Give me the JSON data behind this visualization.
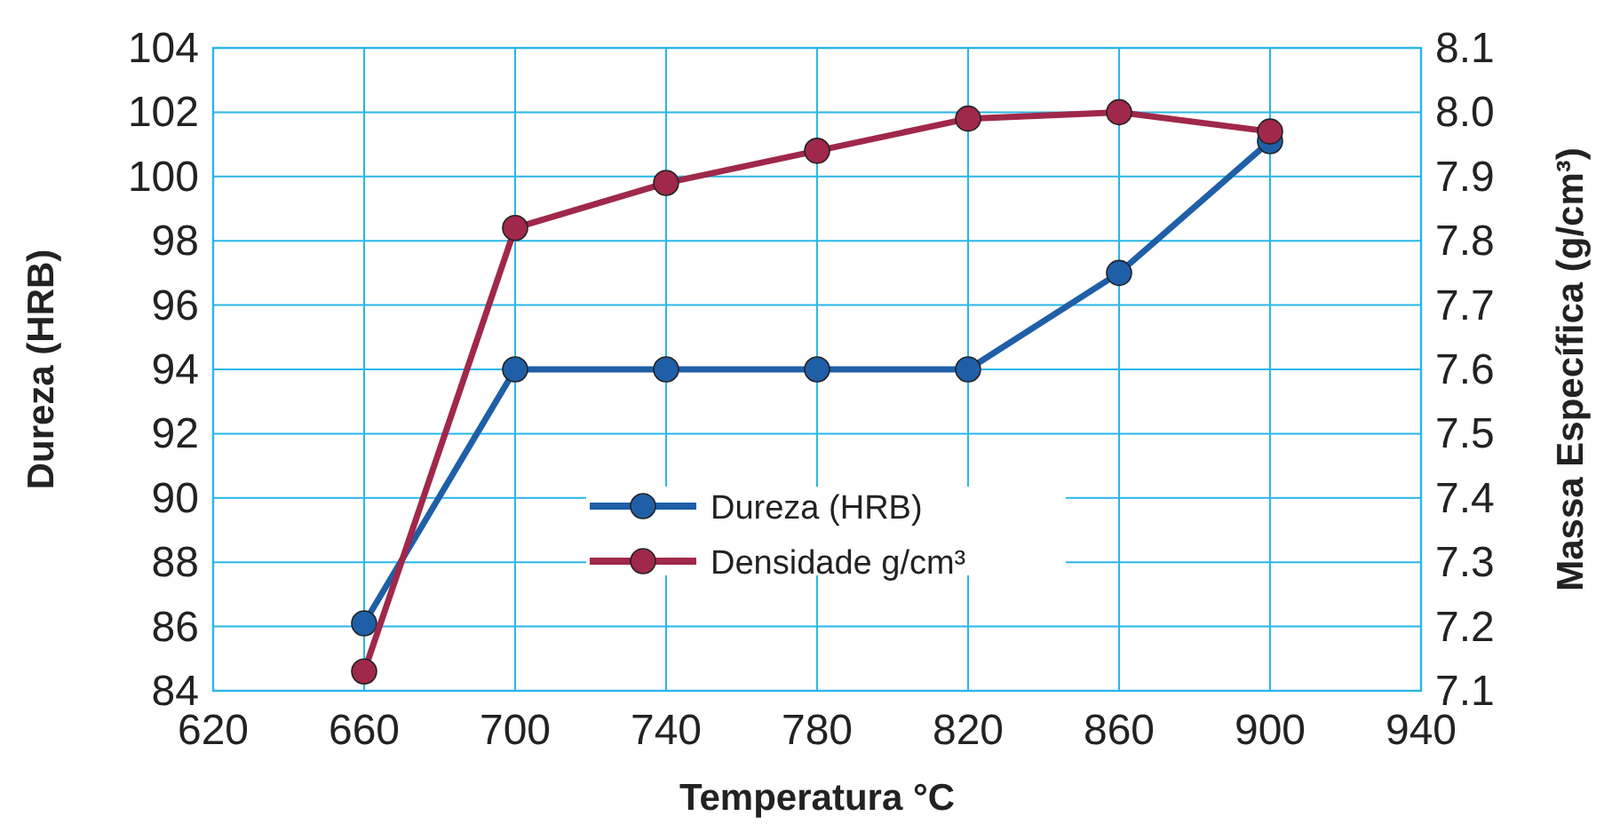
{
  "chart_data": {
    "type": "line",
    "xlabel": "Temperatura °C",
    "ylabel": "Dureza (HRB)",
    "y2label": "Massa Específica (g/cm³)",
    "x": [
      660,
      700,
      740,
      780,
      820,
      860,
      900
    ],
    "series": [
      {
        "name": "Dureza (HRB)",
        "color": "#1f5fa8",
        "values": [
          86.1,
          94,
          94,
          94,
          94,
          97,
          101.1
        ]
      },
      {
        "name": "Densidade g/cm³",
        "color": "#a0284a",
        "axis": "y2",
        "values": [
          7.13,
          7.82,
          7.89,
          7.94,
          7.99,
          8.0,
          7.97
        ]
      }
    ],
    "xlim": [
      620,
      940
    ],
    "xticks": [
      620,
      660,
      700,
      740,
      780,
      820,
      860,
      900,
      940
    ],
    "ylim": [
      84,
      104
    ],
    "yticks": [
      84,
      86,
      88,
      90,
      92,
      94,
      96,
      98,
      100,
      102,
      104
    ],
    "y2lim": [
      7.1,
      8.1
    ],
    "y2ticks": [
      7.1,
      7.2,
      7.3,
      7.4,
      7.5,
      7.6,
      7.7,
      7.8,
      7.9,
      {
        "value": 8.0,
        "label": "8.0"
      },
      8.1
    ],
    "grid": true,
    "legend": "center",
    "marker": "circle",
    "line_style": "solid"
  }
}
